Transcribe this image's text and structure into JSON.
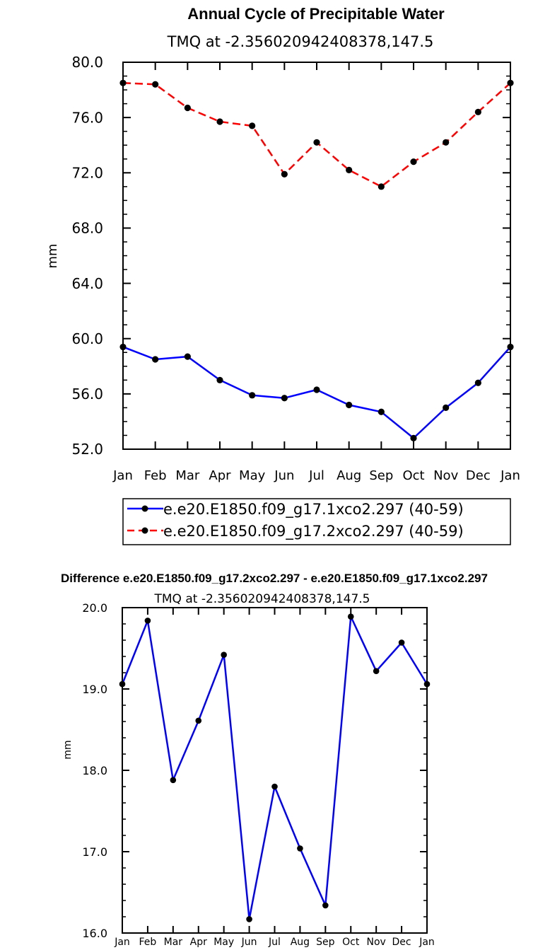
{
  "chart_data": [
    {
      "type": "line",
      "title": "Annual Cycle of Precipitable Water",
      "subtitle": "TMQ at -2.356020942408378,147.5",
      "xlabel": "",
      "ylabel": "mm",
      "categories": [
        "Jan",
        "Feb",
        "Mar",
        "Apr",
        "May",
        "Jun",
        "Jul",
        "Aug",
        "Sep",
        "Oct",
        "Nov",
        "Dec",
        "Jan"
      ],
      "ylim": [
        52.0,
        80.0
      ],
      "yticks": [
        "52.0",
        "56.0",
        "60.0",
        "64.0",
        "68.0",
        "72.0",
        "76.0",
        "80.0"
      ],
      "legend_placement": "bottom",
      "series": [
        {
          "name": "e.e20.E1850.f09_g17.1xco2.297 (40-59)",
          "color": "#0000ff",
          "dash": "solid",
          "values": [
            59.4,
            58.5,
            58.7,
            57.0,
            55.9,
            55.7,
            56.3,
            55.2,
            54.7,
            52.8,
            55.0,
            56.8,
            59.4
          ]
        },
        {
          "name": "e.e20.E1850.f09_g17.2xco2.297 (40-59)",
          "color": "#ff0000",
          "dash": "dashed",
          "values": [
            78.5,
            78.4,
            76.7,
            75.7,
            75.4,
            71.9,
            74.2,
            72.2,
            71.0,
            72.8,
            74.2,
            76.4,
            78.5
          ]
        }
      ]
    },
    {
      "type": "line",
      "title": "Difference e.e20.E1850.f09_g17.2xco2.297 - e.e20.E1850.f09_g17.1xco2.297",
      "subtitle": "TMQ at -2.356020942408378,147.5",
      "xlabel": "",
      "ylabel": "mm",
      "categories": [
        "Jan",
        "Feb",
        "Mar",
        "Apr",
        "May",
        "Jun",
        "Jul",
        "Aug",
        "Sep",
        "Oct",
        "Nov",
        "Dec",
        "Jan"
      ],
      "ylim": [
        16.0,
        20.0
      ],
      "yticks": [
        "16.0",
        "17.0",
        "18.0",
        "19.0",
        "20.0"
      ],
      "series": [
        {
          "color": "#0000ff",
          "dash": "solid",
          "values": [
            19.06,
            19.84,
            17.88,
            18.61,
            19.42,
            16.17,
            17.8,
            17.04,
            16.34,
            19.89,
            19.22,
            19.57,
            19.06
          ]
        }
      ]
    }
  ]
}
